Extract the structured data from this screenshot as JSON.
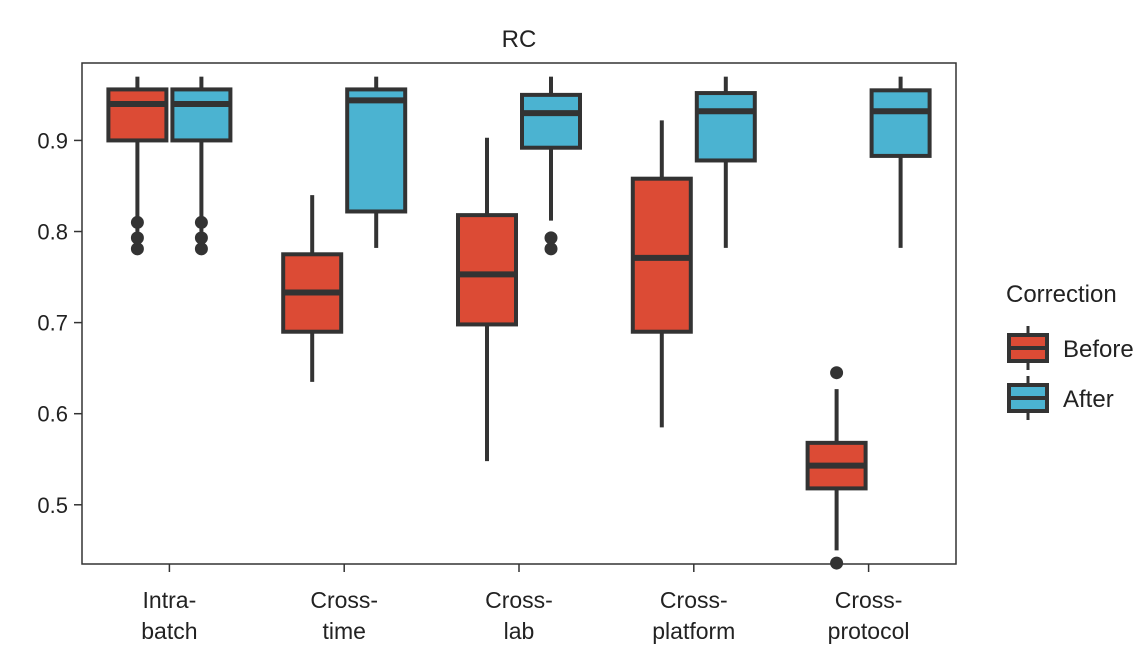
{
  "chart_data": {
    "type": "box",
    "title": "RC",
    "xlabel": "",
    "ylabel": "",
    "ylim": [
      0.435,
      0.985
    ],
    "yticks": [
      0.5,
      0.6,
      0.7,
      0.8,
      0.9
    ],
    "ytick_labels": [
      "0.5",
      "0.6",
      "0.7",
      "0.8",
      "0.9"
    ],
    "categories": [
      [
        "Intra-",
        "batch"
      ],
      [
        "Cross-",
        "time"
      ],
      [
        "Cross-",
        "lab"
      ],
      [
        "Cross-",
        "platform"
      ],
      [
        "Cross-",
        "protocol"
      ]
    ],
    "legend": {
      "title": "Correction",
      "placement": "right",
      "entries": [
        "Before",
        "After"
      ]
    },
    "colors": {
      "Before": "#dc4b35",
      "After": "#4bb3d1",
      "outline": "#333333"
    },
    "series": [
      {
        "name": "Before",
        "boxes": [
          {
            "whisker_low": 0.8,
            "q1": 0.9,
            "median": 0.94,
            "q3": 0.956,
            "whisker_high": 0.97,
            "outliers": [
              0.781,
              0.793,
              0.81
            ]
          },
          {
            "whisker_low": 0.635,
            "q1": 0.69,
            "median": 0.733,
            "q3": 0.775,
            "whisker_high": 0.84,
            "outliers": []
          },
          {
            "whisker_low": 0.548,
            "q1": 0.698,
            "median": 0.753,
            "q3": 0.818,
            "whisker_high": 0.903,
            "outliers": []
          },
          {
            "whisker_low": 0.585,
            "q1": 0.69,
            "median": 0.771,
            "q3": 0.858,
            "whisker_high": 0.922,
            "outliers": []
          },
          {
            "whisker_low": 0.45,
            "q1": 0.518,
            "median": 0.543,
            "q3": 0.568,
            "whisker_high": 0.627,
            "outliers": [
              0.436,
              0.645
            ]
          }
        ]
      },
      {
        "name": "After",
        "boxes": [
          {
            "whisker_low": 0.8,
            "q1": 0.9,
            "median": 0.94,
            "q3": 0.956,
            "whisker_high": 0.97,
            "outliers": [
              0.781,
              0.793,
              0.81
            ]
          },
          {
            "whisker_low": 0.782,
            "q1": 0.822,
            "median": 0.944,
            "q3": 0.956,
            "whisker_high": 0.97,
            "outliers": []
          },
          {
            "whisker_low": 0.812,
            "q1": 0.892,
            "median": 0.93,
            "q3": 0.95,
            "whisker_high": 0.97,
            "outliers": [
              0.781,
              0.793
            ]
          },
          {
            "whisker_low": 0.782,
            "q1": 0.878,
            "median": 0.932,
            "q3": 0.952,
            "whisker_high": 0.97,
            "outliers": []
          },
          {
            "whisker_low": 0.782,
            "q1": 0.883,
            "median": 0.932,
            "q3": 0.955,
            "whisker_high": 0.97,
            "outliers": []
          }
        ]
      }
    ]
  }
}
